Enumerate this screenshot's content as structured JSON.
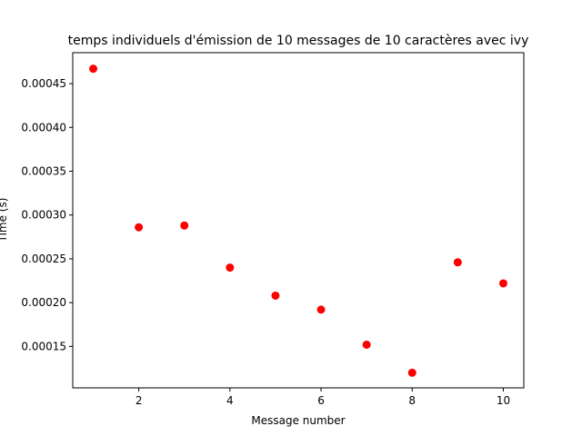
{
  "chart_data": {
    "type": "scatter",
    "title": "temps individuels d'émission de 10 messages de 10 caractères avec ivy",
    "xlabel": "Message number",
    "ylabel": "Time (s)",
    "xlim": [
      0.55,
      10.45
    ],
    "ylim": [
      0.0001027,
      0.0004853
    ],
    "x_ticks": [
      2,
      4,
      6,
      8,
      10
    ],
    "x_tick_labels": [
      "2",
      "4",
      "6",
      "8",
      "10"
    ],
    "y_ticks": [
      0.00015,
      0.0002,
      0.00025,
      0.0003,
      0.00035,
      0.0004,
      0.00045
    ],
    "y_tick_labels": [
      "0.00015",
      "0.00020",
      "0.00025",
      "0.00030",
      "0.00035",
      "0.00040",
      "0.00045"
    ],
    "grid": false,
    "marker_color": "#ff0000",
    "points": [
      {
        "x": 1,
        "y": 0.000467
      },
      {
        "x": 2,
        "y": 0.000286
      },
      {
        "x": 3,
        "y": 0.000288
      },
      {
        "x": 4,
        "y": 0.00024
      },
      {
        "x": 5,
        "y": 0.000208
      },
      {
        "x": 6,
        "y": 0.000192
      },
      {
        "x": 7,
        "y": 0.000152
      },
      {
        "x": 8,
        "y": 0.00012
      },
      {
        "x": 9,
        "y": 0.000246
      },
      {
        "x": 10,
        "y": 0.000222
      }
    ]
  }
}
